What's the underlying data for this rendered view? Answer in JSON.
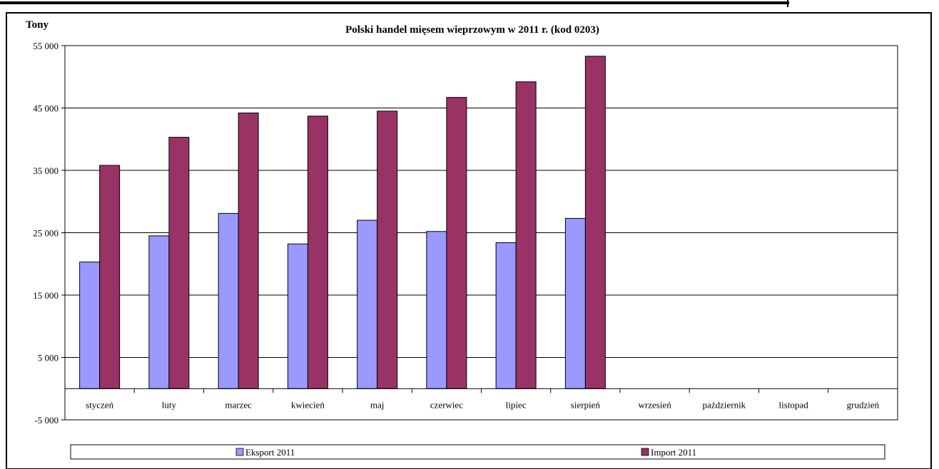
{
  "chart_data": {
    "type": "bar",
    "title": "Polski handel mięsem wieprzowym w 2011 r. (kod 0203)",
    "ylabel": "Tony",
    "xlabel": "",
    "categories": [
      "styczeń",
      "luty",
      "marzec",
      "kwiecień",
      "maj",
      "czerwiec",
      "lipiec",
      "sierpień",
      "wrzesień",
      "październik",
      "listopad",
      "grudzień"
    ],
    "series": [
      {
        "name": "Eksport 2011",
        "color": "#9999FF",
        "values": [
          20300,
          24500,
          28100,
          23200,
          27000,
          25200,
          23400,
          27300,
          null,
          null,
          null,
          null
        ]
      },
      {
        "name": "Import 2011",
        "color": "#993366",
        "values": [
          35800,
          40300,
          44200,
          43700,
          44500,
          46700,
          49200,
          53300,
          null,
          null,
          null,
          null
        ]
      }
    ],
    "ylim": [
      -5000,
      55000
    ],
    "yticks": [
      -5000,
      5000,
      15000,
      25000,
      35000,
      45000,
      55000
    ],
    "ytick_labels": [
      "-5 000",
      "5 000",
      "15 000",
      "25 000",
      "35 000",
      "45 000",
      "55 000"
    ],
    "grid": true,
    "legend_position": "bottom"
  }
}
